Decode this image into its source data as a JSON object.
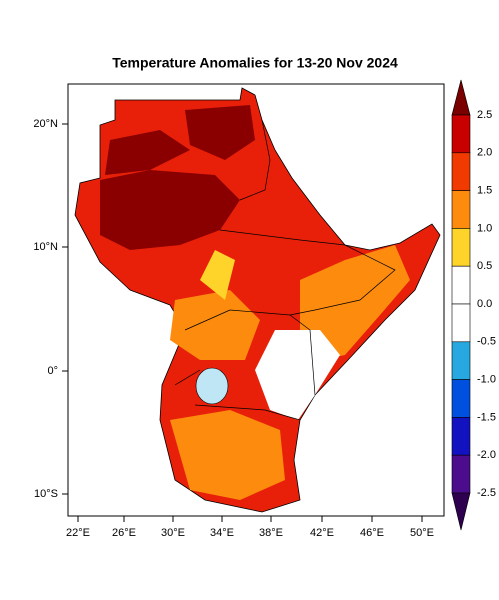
{
  "title": "Temperature Anomalies for 13-20 Nov 2024",
  "lat_labels": [
    "20°N",
    "10°N",
    "0°",
    "10°S"
  ],
  "lon_labels": [
    "22°E",
    "26°E",
    "30°E",
    "34°E",
    "38°E",
    "42°E",
    "46°E",
    "50°E"
  ],
  "colorbar": {
    "labels": [
      "2.5",
      "2.0",
      "1.5",
      "1.0",
      "0.5",
      "0.0",
      "-0.5",
      "-1.0",
      "-1.5",
      "-2.0",
      "-2.5"
    ],
    "colors": [
      "#7a0000",
      "#c80000",
      "#f03a00",
      "#fd8c0e",
      "#ffd42a",
      "#ffffff",
      "#ffffff",
      "#28a8e0",
      "#0050e0",
      "#1212c0",
      "#4b0d8c",
      "#2d0050"
    ]
  }
}
